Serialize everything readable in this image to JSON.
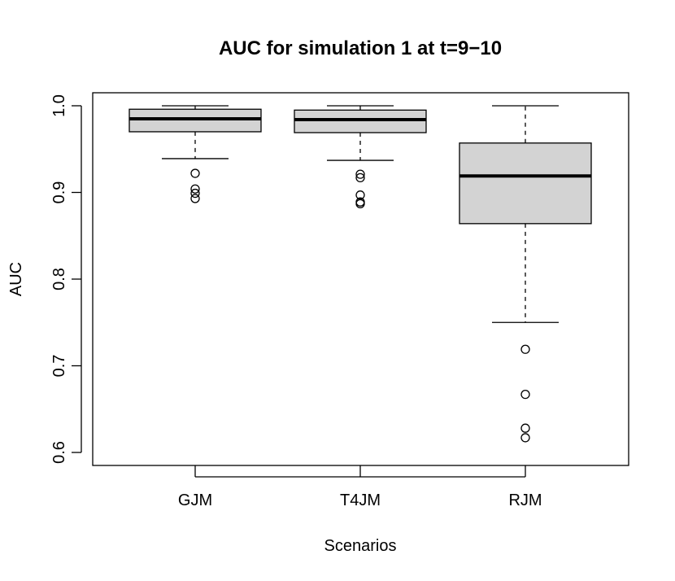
{
  "chart_data": {
    "type": "boxplot",
    "title": "AUC for simulation 1 at t=9−10",
    "xlabel": "Scenarios",
    "ylabel": "AUC",
    "ylim": [
      0.585,
      1.015
    ],
    "yticks": [
      0.6,
      0.7,
      0.8,
      0.9,
      1.0
    ],
    "ytick_labels": [
      "0.6",
      "0.7",
      "0.8",
      "0.9",
      "1.0"
    ],
    "categories": [
      "GJM",
      "T4JM",
      "RJM"
    ],
    "grid": false,
    "legend": "none",
    "colors": {
      "box_fill": "#d3d3d3",
      "stroke": "#000000"
    },
    "boxes": [
      {
        "name": "GJM",
        "whisker_low": 0.939,
        "q1": 0.97,
        "median": 0.985,
        "q3": 0.996,
        "whisker_high": 1.0,
        "outliers": [
          0.922,
          0.904,
          0.899,
          0.893
        ]
      },
      {
        "name": "T4JM",
        "whisker_low": 0.937,
        "q1": 0.969,
        "median": 0.984,
        "q3": 0.995,
        "whisker_high": 1.0,
        "outliers": [
          0.921,
          0.917,
          0.897,
          0.889,
          0.887
        ]
      },
      {
        "name": "RJM",
        "whisker_low": 0.75,
        "q1": 0.864,
        "median": 0.919,
        "q3": 0.957,
        "whisker_high": 1.0,
        "outliers": [
          0.719,
          0.667,
          0.628,
          0.617
        ]
      }
    ]
  }
}
